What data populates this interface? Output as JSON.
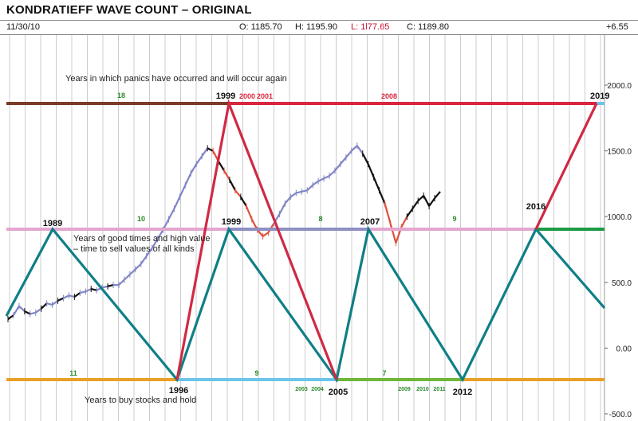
{
  "header": {
    "title": "KONDRATIEFF WAVE COUNT –  ORIGINAL",
    "date": "11/30/10",
    "open": "O: 1185.70",
    "high": "H: 1195.90",
    "low": "L: 1l77.65",
    "close": "C: 1189.80",
    "change": "+6.55"
  },
  "colors": {
    "panic_line": "#d9263e",
    "panic_prefix": "#7a3b28",
    "good_times": "#1d9a44",
    "good_times_pink": "#e4a6cf",
    "good_times_purple": "#8e8fc2",
    "buy_line": "#e9a027",
    "buy_cyan": "#6cc4e8",
    "buy_green": "#70b63a",
    "wave_teal": "#0f7f86",
    "wave_red": "#cf2a44",
    "price_blue": "#8185c6",
    "price_black": "#111111",
    "price_red": "#e0503c",
    "gridline": "#cccccc",
    "cycle_text": "#2b8a2b"
  },
  "chart_data": {
    "type": "line",
    "y_axis": {
      "ticks": [
        2000.0,
        1500.0,
        1000.0,
        500.0,
        0.0,
        -500.0
      ],
      "labels": [
        "2000.0",
        "1500.0",
        "1000.0",
        "500.0",
        "0.00",
        "-500.0"
      ],
      "range": [
        -500,
        2150
      ],
      "side": "right"
    },
    "annotations": {
      "panic_text": "Years in which panics have occurred and will occur again",
      "good_text_1": "Years of good times and high value",
      "good_text_2": "– time to sell values of all kinds",
      "buy_text": "Years to buy stocks and hold"
    },
    "panic_years": [
      {
        "label": "1999",
        "color": "#111111",
        "bold": true
      },
      {
        "label": "2000",
        "color": "#d9263e",
        "bold": true
      },
      {
        "label": "2001",
        "color": "#d9263e",
        "bold": true
      },
      {
        "label": "2008",
        "color": "#d9263e",
        "bold": true
      },
      {
        "label": "2019",
        "color": "#111111",
        "bold": true
      }
    ],
    "good_years": [
      {
        "label": "1989"
      },
      {
        "label": "1999"
      },
      {
        "label": "2007"
      },
      {
        "label": "2016"
      }
    ],
    "buy_years": [
      {
        "label": "1996"
      },
      {
        "label": "2005"
      },
      {
        "label": "2012"
      }
    ],
    "cycle_lengths": {
      "panic": [
        "18"
      ],
      "good": [
        "10",
        "8",
        "9"
      ],
      "buy": [
        "11",
        "9",
        "7"
      ]
    },
    "small_green_years": [
      "2003",
      "2004",
      "2009",
      "2010",
      "2011"
    ],
    "wave_teal": [
      [
        -1,
        700
      ],
      [
        3,
        2400
      ],
      [
        13,
        -1700
      ],
      [
        23,
        2400
      ],
      [
        34,
        -1700
      ],
      [
        41,
        2400
      ],
      [
        50,
        -1700
      ],
      [
        60,
        2400
      ],
      [
        65,
        200
      ]
    ],
    "wave_red": [
      [
        -100,
        0
      ],
      [
        13,
        -1700
      ],
      [
        17,
        3500
      ],
      [
        34,
        -1700
      ],
      [
        -100,
        0
      ],
      [
        50,
        -1700
      ],
      [
        58,
        2400
      ],
      [
        68,
        3500
      ]
    ],
    "price_series": [
      [
        0,
        220
      ],
      [
        0.5,
        250
      ],
      [
        1,
        320
      ],
      [
        1.5,
        280
      ],
      [
        2,
        260
      ],
      [
        2.5,
        270
      ],
      [
        3,
        300
      ],
      [
        3.5,
        340
      ],
      [
        4,
        330
      ],
      [
        4.5,
        360
      ],
      [
        5,
        380
      ],
      [
        5.5,
        400
      ],
      [
        6,
        390
      ],
      [
        6.5,
        420
      ],
      [
        7,
        430
      ],
      [
        7.5,
        450
      ],
      [
        8,
        440
      ],
      [
        8.5,
        460
      ],
      [
        9,
        470
      ],
      [
        9.5,
        480
      ],
      [
        10,
        480
      ],
      [
        10.5,
        520
      ],
      [
        11,
        560
      ],
      [
        11.5,
        600
      ],
      [
        12,
        640
      ],
      [
        12.5,
        700
      ],
      [
        13,
        760
      ],
      [
        13.5,
        830
      ],
      [
        14,
        900
      ],
      [
        14.5,
        980
      ],
      [
        15,
        1060
      ],
      [
        15.5,
        1150
      ],
      [
        16,
        1240
      ],
      [
        16.5,
        1330
      ],
      [
        17,
        1400
      ],
      [
        17.5,
        1460
      ],
      [
        18,
        1520
      ],
      [
        18.5,
        1500
      ],
      [
        19,
        1420
      ],
      [
        19.5,
        1350
      ],
      [
        20,
        1280
      ],
      [
        20.5,
        1200
      ],
      [
        21,
        1150
      ],
      [
        21.5,
        1080
      ],
      [
        22,
        980
      ],
      [
        22.5,
        900
      ],
      [
        23,
        850
      ],
      [
        23.5,
        880
      ],
      [
        24,
        950
      ],
      [
        24.5,
        1020
      ],
      [
        25,
        1100
      ],
      [
        25.5,
        1150
      ],
      [
        26,
        1180
      ],
      [
        26.5,
        1190
      ],
      [
        27,
        1200
      ],
      [
        27.5,
        1240
      ],
      [
        28,
        1270
      ],
      [
        28.5,
        1290
      ],
      [
        29,
        1310
      ],
      [
        29.5,
        1350
      ],
      [
        30,
        1400
      ],
      [
        30.5,
        1450
      ],
      [
        31,
        1500
      ],
      [
        31.5,
        1540
      ],
      [
        32,
        1480
      ],
      [
        32.5,
        1400
      ],
      [
        33,
        1300
      ],
      [
        33.5,
        1200
      ],
      [
        34,
        1100
      ],
      [
        34.5,
        950
      ],
      [
        35,
        800
      ],
      [
        35.5,
        920
      ],
      [
        36,
        1000
      ],
      [
        36.5,
        1060
      ],
      [
        37,
        1120
      ],
      [
        37.5,
        1160
      ],
      [
        38,
        1080
      ],
      [
        38.5,
        1140
      ],
      [
        39,
        1190
      ]
    ]
  }
}
